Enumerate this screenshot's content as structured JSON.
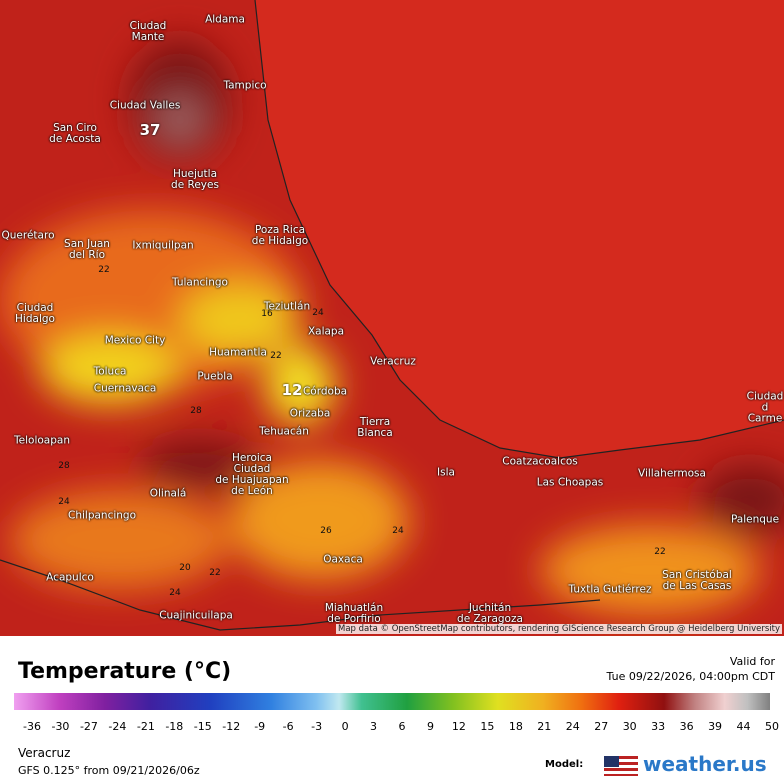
{
  "map": {
    "places": [
      "Ciudad\nMante",
      "Aldama",
      "Tampico",
      "Ciudad Valles",
      "San Ciro\nde Acosta",
      "Huejutla\nde Reyes",
      "Poza Rica\nde Hidalgo",
      "Querétaro",
      "San Juan\ndel Río",
      "Ixmiquilpan",
      "Tulancingo",
      "Ciudad\nHidalgo",
      "Teziutlán",
      "Xalapa",
      "Mexico City",
      "Huamantla",
      "Toluca",
      "Puebla",
      "Cuernavaca",
      "Veracruz",
      "Córdoba",
      "Orizaba",
      "Tehuacán",
      "Tierra\nBlanca",
      "Heroica\nCiudad\nde Huajuapan\nde León",
      "Teloloapan",
      "Olinalá",
      "Isla",
      "Coatzacoalcos",
      "Las Choapas",
      "Villahermosa",
      "Chilpancingo",
      "Oaxaca",
      "Acapulco",
      "Cuajinicuilapa",
      "Miahuatlán\nde Porfirio",
      "Juchitán\nde Zaragoza",
      "Tuxtla Gutiérrez",
      "San Cristóbal\nde Las Casas",
      "Palenque",
      "Ciudad d\nCarme"
    ],
    "temperature_labels": [
      37,
      12,
      22,
      28,
      26,
      24,
      22,
      20,
      22,
      24,
      24,
      28,
      16,
      24,
      22
    ],
    "attribution": "Map data © OpenStreetMap contributors, rendering GIScience Research Group @ Heidelberg University"
  },
  "legend": {
    "title": "Temperature (°C)",
    "valid_label": "Valid for",
    "valid_time": "Tue 09/22/2026, 04:00pm CDT",
    "ticks": [
      -36,
      -30,
      -27,
      -24,
      -21,
      -18,
      -15,
      -12,
      -9,
      -6,
      -3,
      0,
      3,
      6,
      9,
      12,
      15,
      18,
      21,
      24,
      27,
      30,
      33,
      36,
      39,
      44,
      50
    ],
    "location": "Veracruz",
    "model_run": "GFS 0.125° from 09/21/2026/06z",
    "model_label": "Model:",
    "brand": "weather.us"
  }
}
